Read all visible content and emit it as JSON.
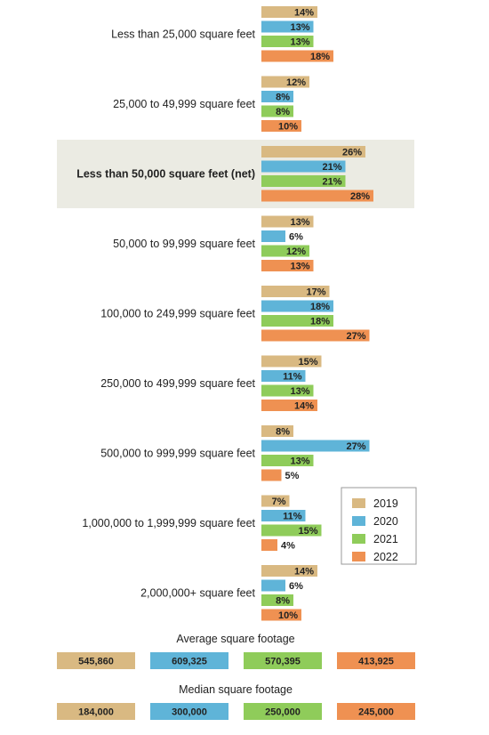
{
  "chart_data": {
    "type": "bar",
    "orientation": "horizontal",
    "unit": "%",
    "categories": [
      "Less than 25,000 square feet",
      "25,000 to 49,999 square feet",
      "Less than 50,000 square feet (net)",
      "50,000 to 99,999 square feet",
      "100,000 to 249,999 square feet",
      "250,000 to 499,999 square feet",
      "500,000 to 999,999 square feet",
      "1,000,000 to 1,999,999 square feet",
      "2,000,000+ square feet"
    ],
    "highlighted_category": "Less than 50,000 square feet (net)",
    "series": [
      {
        "name": "2019",
        "color": "#d9b982",
        "values": [
          14,
          12,
          26,
          13,
          17,
          15,
          8,
          7,
          14
        ]
      },
      {
        "name": "2020",
        "color": "#5fb4d8",
        "values": [
          13,
          8,
          21,
          6,
          18,
          11,
          27,
          11,
          6
        ]
      },
      {
        "name": "2021",
        "color": "#8fcc5a",
        "values": [
          13,
          8,
          21,
          12,
          18,
          13,
          13,
          15,
          8
        ]
      },
      {
        "name": "2022",
        "color": "#ef9152",
        "values": [
          18,
          10,
          28,
          13,
          27,
          14,
          5,
          4,
          10
        ]
      }
    ],
    "legend_position": "bottom-right",
    "grid": false,
    "summary": [
      {
        "label": "Average square footage",
        "values": [
          "545,860",
          "609,325",
          "570,395",
          "413,925"
        ]
      },
      {
        "label": "Median square footage",
        "values": [
          "184,000",
          "300,000",
          "250,000",
          "245,000"
        ]
      }
    ]
  },
  "colors": {
    "highlight_background": "#ebebe3",
    "text": "#222222"
  }
}
